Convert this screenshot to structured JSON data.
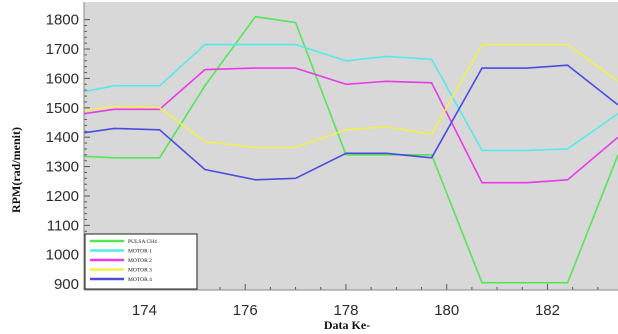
{
  "chart_data": {
    "type": "line",
    "xlabel": "Data Ke-",
    "ylabel": "RPM(rad/menit)",
    "xlim": [
      172.8,
      183.4
    ],
    "ylim": [
      880,
      1860
    ],
    "xticks": [
      174,
      176,
      178,
      180,
      182
    ],
    "yticks": [
      900,
      1000,
      1100,
      1200,
      1300,
      1400,
      1500,
      1600,
      1700,
      1800
    ],
    "x": [
      172.8,
      173.4,
      174.3,
      175.2,
      176.2,
      177.0,
      178.0,
      178.8,
      179.7,
      180.7,
      181.6,
      182.4,
      183.4
    ],
    "series": [
      {
        "name": "PULSA CH4",
        "color": "#55e655",
        "values": [
          1335,
          1330,
          1330,
          1575,
          1810,
          1790,
          1340,
          1340,
          1340,
          905,
          905,
          905,
          1340
        ]
      },
      {
        "name": "MOTOR 1",
        "color": "#55eaea",
        "values": [
          1555,
          1575,
          1575,
          1715,
          1715,
          1715,
          1660,
          1675,
          1665,
          1355,
          1355,
          1360,
          1480
        ]
      },
      {
        "name": "MOTOR 2",
        "color": "#e83ae8",
        "values": [
          1480,
          1495,
          1495,
          1630,
          1635,
          1635,
          1580,
          1590,
          1585,
          1245,
          1245,
          1255,
          1400
        ]
      },
      {
        "name": "MOTOR 3",
        "color": "#f0f050",
        "values": [
          1490,
          1505,
          1500,
          1385,
          1365,
          1365,
          1425,
          1435,
          1410,
          1715,
          1715,
          1715,
          1590
        ]
      },
      {
        "name": "MOTOR 4",
        "color": "#4b4be0",
        "values": [
          1415,
          1430,
          1425,
          1290,
          1255,
          1260,
          1345,
          1345,
          1330,
          1635,
          1635,
          1645,
          1510
        ]
      }
    ],
    "legend_position": "bottom-left",
    "grid": false,
    "background": "#d8d8d8"
  }
}
